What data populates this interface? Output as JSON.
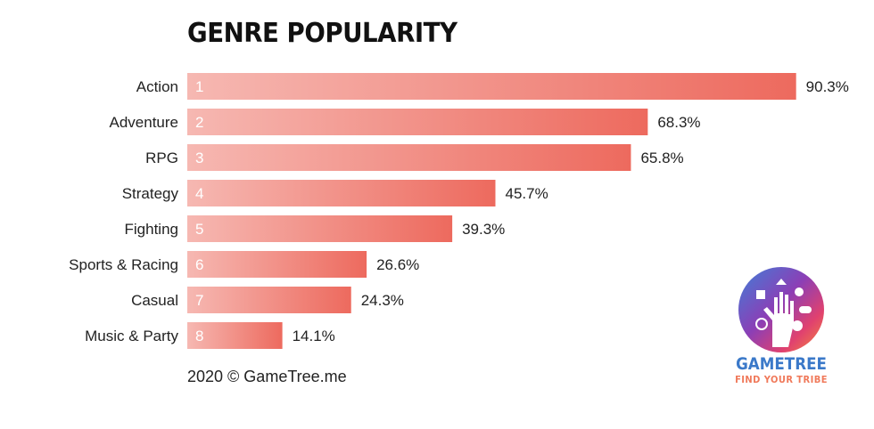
{
  "title": "GENRE POPULARITY",
  "footer": "2020 © GameTree.me",
  "logo": {
    "brand": "GAMETREE",
    "tagline": "FIND YOUR TRIBE"
  },
  "colors": {
    "bar_start": "#f6b8b2",
    "bar_end": "#ed6a5e",
    "brand_blue": "#3b79c9",
    "tagline_orange": "#f0795a"
  },
  "chart_data": {
    "type": "bar",
    "orientation": "horizontal",
    "title": "GENRE POPULARITY",
    "xlim": [
      0,
      100
    ],
    "grid": false,
    "legend": "none",
    "categories": [
      "Action",
      "Adventure",
      "RPG",
      "Strategy",
      "Fighting",
      "Sports & Racing",
      "Casual",
      "Music & Party"
    ],
    "ranks": [
      "1",
      "2",
      "3",
      "4",
      "5",
      "6",
      "7",
      "8"
    ],
    "values": [
      90.3,
      68.3,
      65.8,
      45.7,
      39.3,
      26.6,
      24.3,
      14.1
    ],
    "value_labels": [
      "90.3%",
      "68.3%",
      "65.8%",
      "45.7%",
      "39.3%",
      "26.6%",
      "24.3%",
      "14.1%"
    ]
  }
}
